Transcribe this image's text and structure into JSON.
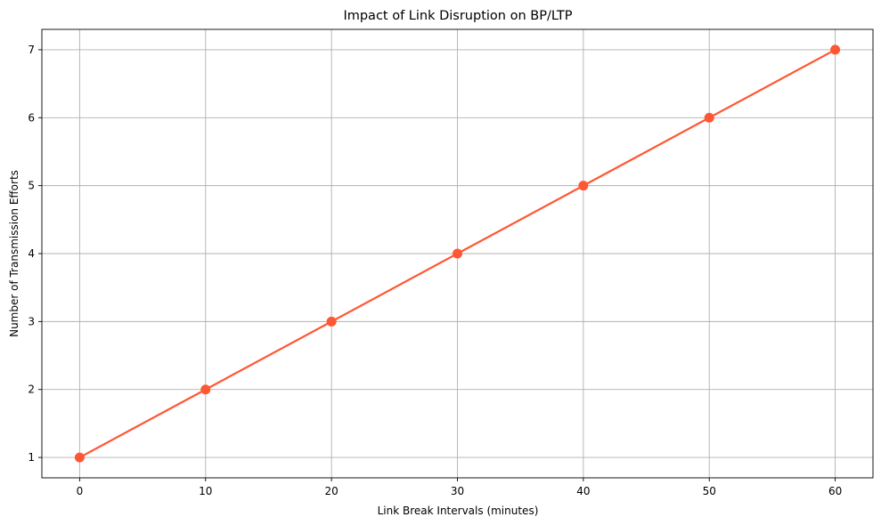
{
  "chart_data": {
    "type": "line",
    "title": "Impact of Link Disruption on BP/LTP",
    "xlabel": "Link Break Intervals (minutes)",
    "ylabel": "Number of Transmission Efforts",
    "x": [
      0,
      10,
      20,
      30,
      40,
      50,
      60
    ],
    "series": [
      {
        "values": [
          1,
          2,
          3,
          4,
          5,
          6,
          7
        ],
        "color": "#ff5733",
        "marker": "circle"
      }
    ],
    "xticks": [
      0,
      10,
      20,
      30,
      40,
      50,
      60
    ],
    "yticks": [
      1,
      2,
      3,
      4,
      5,
      6,
      7
    ],
    "xlim": [
      -3,
      63
    ],
    "ylim": [
      0.7,
      7.3
    ],
    "grid": true
  }
}
